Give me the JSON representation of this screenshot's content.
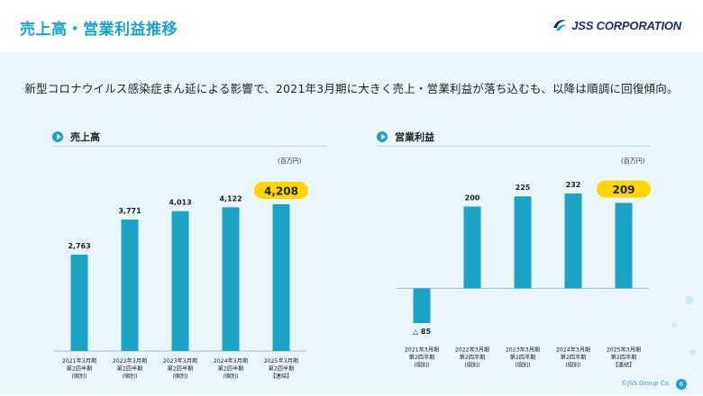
{
  "header": {
    "title": "売上高・営業利益推移",
    "logo_text": "JSS CORPORATION",
    "logo_icon": "jss-swirl-icon"
  },
  "subtitle": "新型コロナウイルス感染症まん延による影響で、2021年3月期に大きく売上・営業利益が落ち込むも、以降は順調に回復傾向。",
  "colors": {
    "accent": "#1aa3c6",
    "bar": "#1aa3c6",
    "highlight": "#ffd700",
    "background": "#eaf6fb"
  },
  "footer": {
    "copyright": "©JSS Group Co.",
    "page_number": "6"
  },
  "chart_data": [
    {
      "type": "bar",
      "title": "売上高",
      "unit": "(百万円)",
      "categories": [
        [
          "2021年3月期",
          "第2四半期",
          "(個別)"
        ],
        [
          "2022年3月期",
          "第2四半期",
          "(個別)"
        ],
        [
          "2023年3月期",
          "第2四半期",
          "(個別)"
        ],
        [
          "2024年3月期",
          "第2四半期",
          "(個別)"
        ],
        [
          "2025年3月期",
          "第2四半期",
          "【連結】"
        ]
      ],
      "values": [
        2763,
        3771,
        4013,
        4122,
        4208
      ],
      "labels": [
        "2,763",
        "3,771",
        "4,013",
        "4,122",
        "4,208"
      ],
      "highlight_index": 4,
      "ylim": [
        0,
        4208
      ]
    },
    {
      "type": "bar",
      "title": "営業利益",
      "unit": "(百万円)",
      "categories": [
        [
          "2021年3月期",
          "第2四半期",
          "(個別)"
        ],
        [
          "2022年3月期",
          "第2四半期",
          "(個別)"
        ],
        [
          "2023年3月期",
          "第2四半期",
          "(個別)"
        ],
        [
          "2024年3月期",
          "第2四半期",
          "(個別)"
        ],
        [
          "2025年3月期",
          "第2四半期",
          "【連結】"
        ]
      ],
      "values": [
        -85,
        200,
        225,
        232,
        209
      ],
      "labels": [
        "△ 85",
        "200",
        "225",
        "232",
        "209"
      ],
      "highlight_index": 4,
      "ylim": [
        -85,
        232
      ]
    }
  ]
}
